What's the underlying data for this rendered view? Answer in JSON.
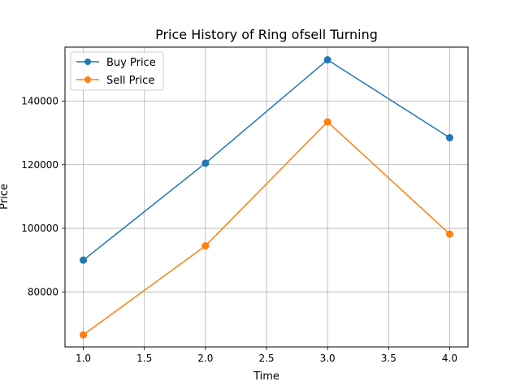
{
  "chart_data": {
    "type": "line",
    "title": "Price History of Ring ofsell Turning",
    "xlabel": "Time",
    "ylabel": "Price",
    "xlim": [
      0.85,
      4.15
    ],
    "ylim": [
      62700,
      157000
    ],
    "x_ticks": [
      1.0,
      1.5,
      2.0,
      2.5,
      3.0,
      3.5,
      4.0
    ],
    "x_tick_labels": [
      "1.0",
      "1.5",
      "2.0",
      "2.5",
      "3.0",
      "3.5",
      "4.0"
    ],
    "y_ticks": [
      80000,
      100000,
      120000,
      140000
    ],
    "y_tick_labels": [
      "80000",
      "100000",
      "120000",
      "140000"
    ],
    "grid": true,
    "legend_position": "top-left",
    "x": [
      1.0,
      2.0,
      3.0,
      4.0
    ],
    "series": [
      {
        "name": "Buy Price",
        "color": "#1f77b4",
        "values": [
          90000,
          120500,
          153000,
          128500
        ]
      },
      {
        "name": "Sell Price",
        "color": "#ff7f0e",
        "values": [
          66500,
          94500,
          133500,
          98200
        ]
      }
    ]
  }
}
